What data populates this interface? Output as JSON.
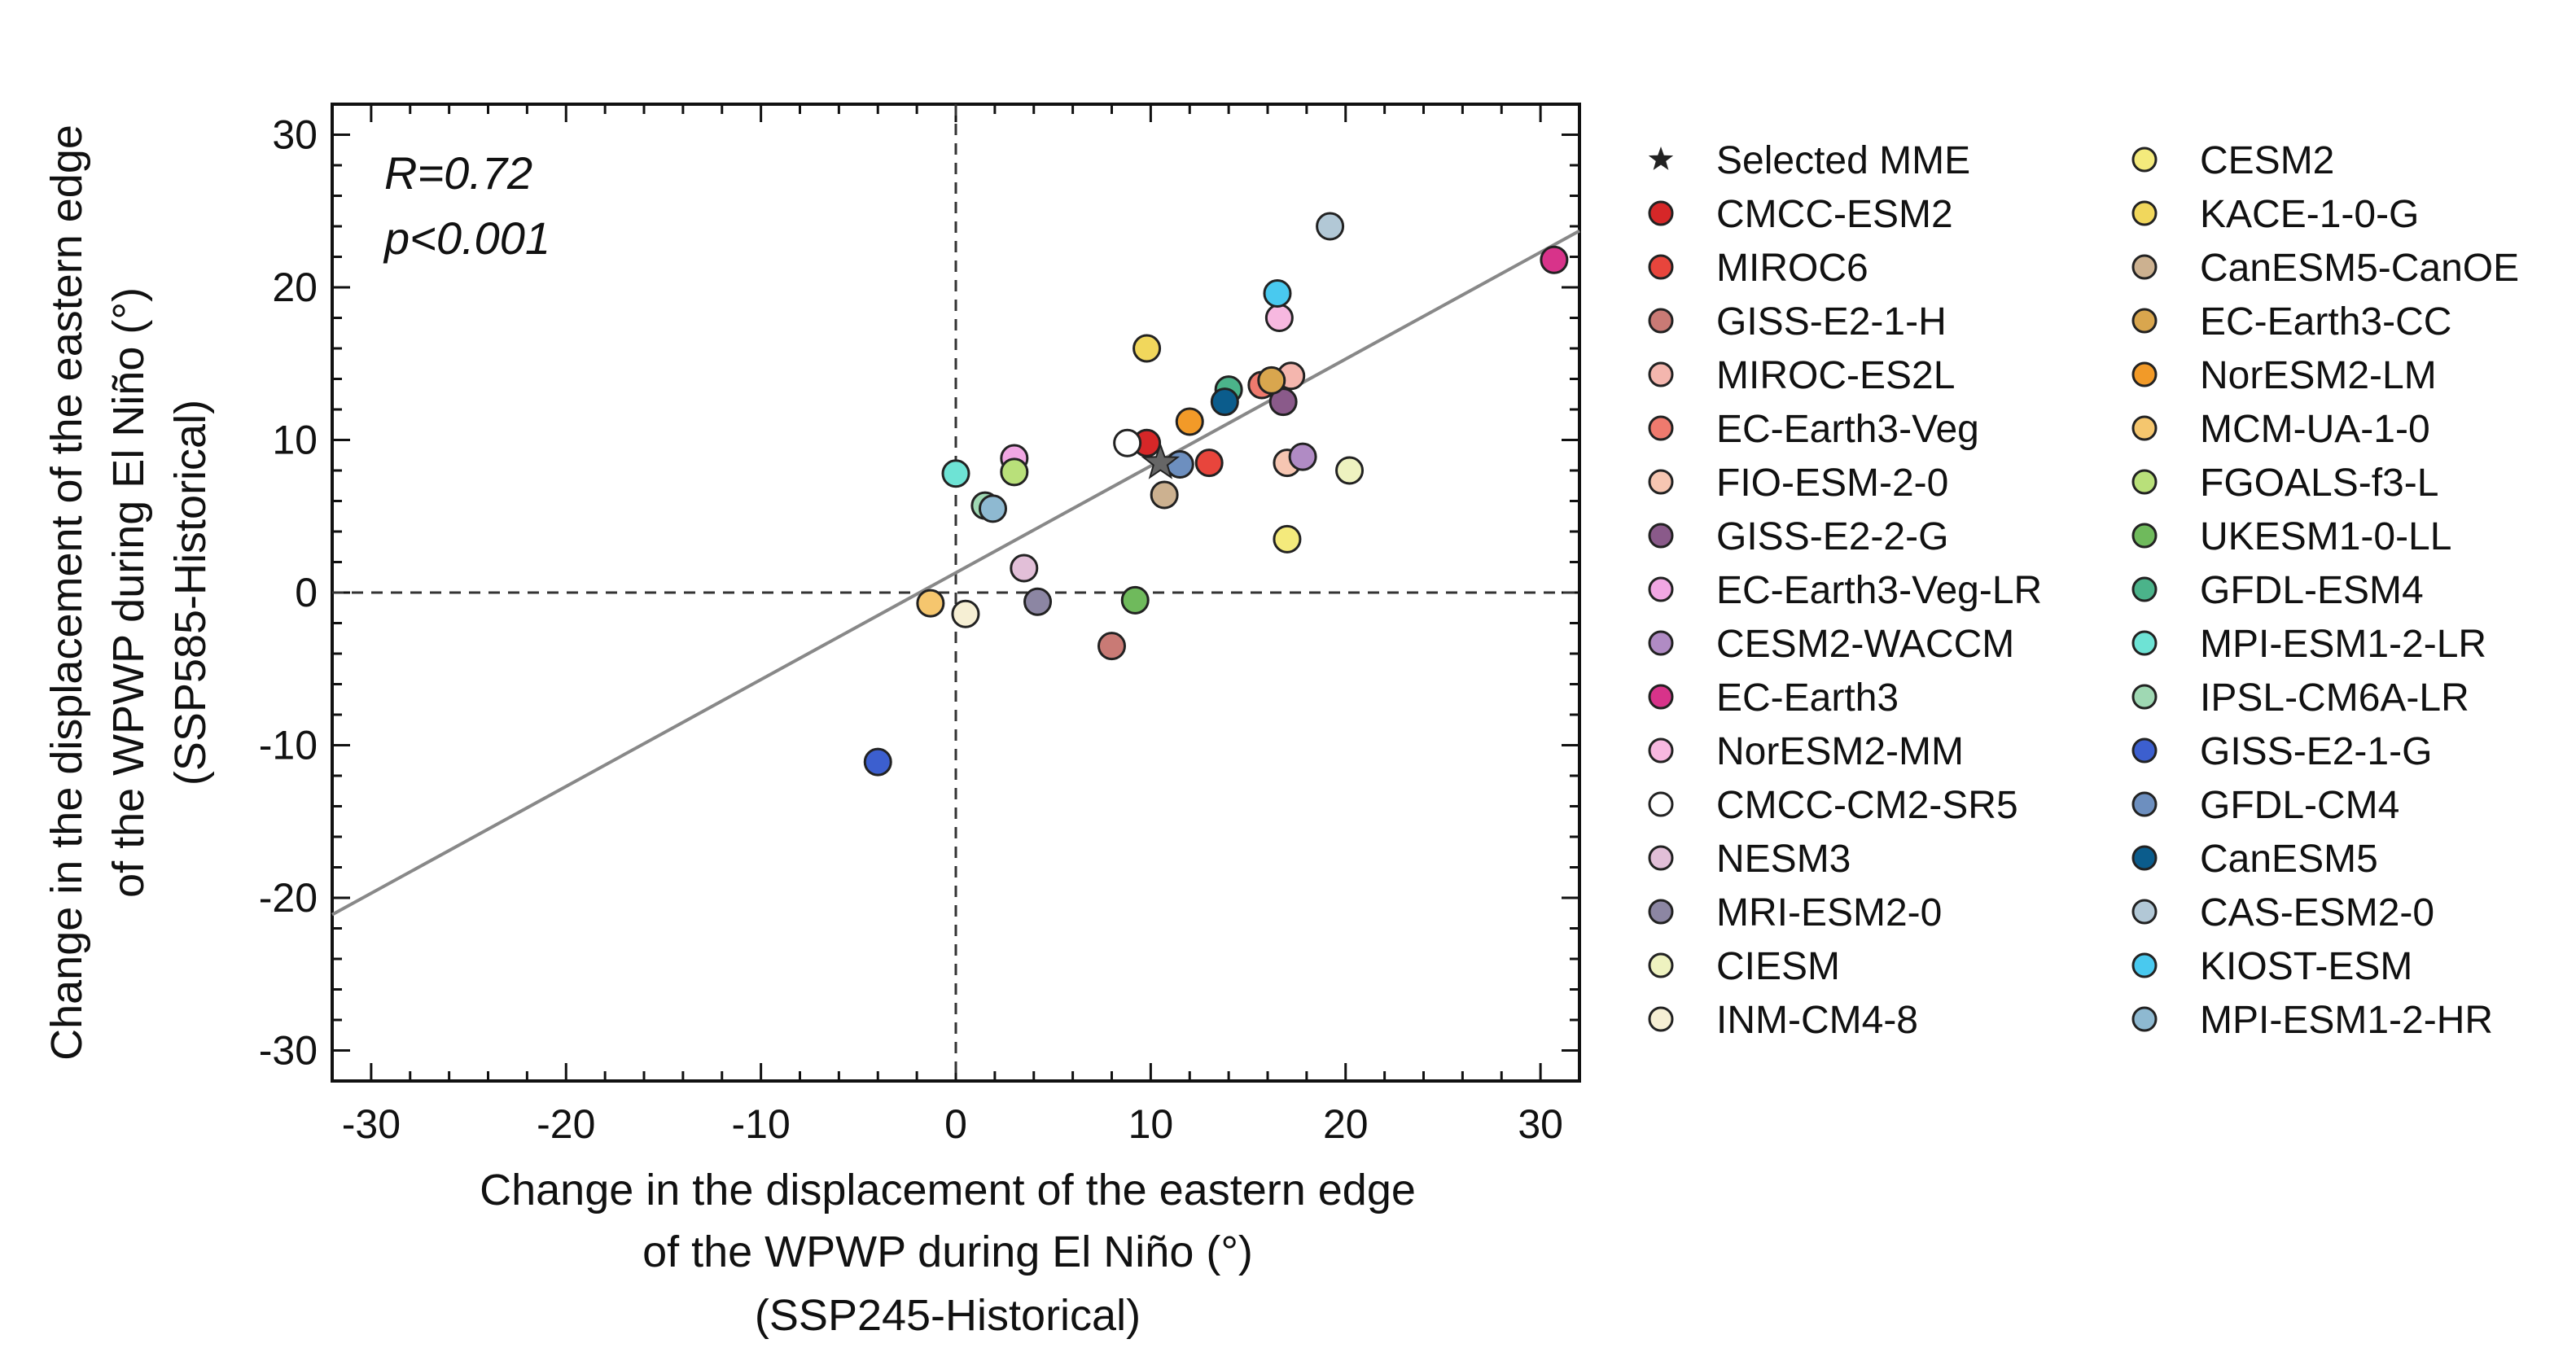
{
  "chart_data": {
    "type": "scatter",
    "xlabel_lines": [
      "Change in the displacement of the eastern edge",
      "of the WPWP during El Niño (°)",
      "(SSP245-Historical)"
    ],
    "ylabel_lines": [
      "Change in the displacement of the eastern edge",
      "of the WPWP during El Niño (°)",
      "(SSP585-Historical)"
    ],
    "xlim": [
      -32,
      32
    ],
    "ylim": [
      -32,
      32
    ],
    "xticks": [
      -30,
      -20,
      -10,
      0,
      10,
      20,
      30
    ],
    "yticks": [
      -30,
      -20,
      -10,
      0,
      10,
      20,
      30
    ],
    "xtick_labels": [
      "-30",
      "-20",
      "-10",
      "0",
      "10",
      "20",
      "30"
    ],
    "ytick_labels": [
      "-30",
      "-20",
      "-10",
      "0",
      "10",
      "20",
      "30"
    ],
    "stats": {
      "r_text": "R=0.72",
      "p_text": "p<0.001"
    },
    "regression_line": {
      "slope": 0.7,
      "intercept": 1.3,
      "color": "#888888"
    },
    "reference_lines": {
      "x": 0,
      "y": 0
    },
    "mme": {
      "name": "Selected MME",
      "x": 10.5,
      "y": 8.5
    },
    "series": [
      {
        "name": "CMCC-ESM2",
        "color": "#d62728",
        "x": 9.8,
        "y": 9.8
      },
      {
        "name": "MIROC6",
        "color": "#e8453c",
        "x": 13.0,
        "y": 8.5
      },
      {
        "name": "GISS-E2-1-H",
        "color": "#c97a75",
        "x": 8.0,
        "y": -3.5
      },
      {
        "name": "MIROC-ES2L",
        "color": "#f4b6ae",
        "x": 17.2,
        "y": 14.2
      },
      {
        "name": "EC-Earth3-Veg",
        "color": "#ef7a6e",
        "x": 15.7,
        "y": 13.6
      },
      {
        "name": "FIO-ESM-2-0",
        "color": "#f6c6b2",
        "x": 17.0,
        "y": 8.5
      },
      {
        "name": "GISS-E2-2-G",
        "color": "#8a5a8a",
        "x": 16.8,
        "y": 12.5
      },
      {
        "name": "EC-Earth3-Veg-LR",
        "color": "#f1a7e3",
        "x": 3.0,
        "y": 8.8
      },
      {
        "name": "CESM2-WACCM",
        "color": "#b08bc4",
        "x": 17.8,
        "y": 8.9
      },
      {
        "name": "EC-Earth3",
        "color": "#d8338a",
        "x": 30.7,
        "y": 21.8
      },
      {
        "name": "NorESM2-MM",
        "color": "#f7b8e0",
        "x": 16.6,
        "y": 18.0
      },
      {
        "name": "CMCC-CM2-SR5",
        "color": "#ffffff",
        "x": 8.8,
        "y": 9.8
      },
      {
        "name": "NESM3",
        "color": "#e2bfd8",
        "x": 3.5,
        "y": 1.6
      },
      {
        "name": "MRI-ESM2-0",
        "color": "#8c86a3",
        "x": 4.2,
        "y": -0.6
      },
      {
        "name": "CIESM",
        "color": "#eef2c0",
        "x": 20.2,
        "y": 8.0
      },
      {
        "name": "INM-CM4-8",
        "color": "#f6efd4",
        "x": 0.5,
        "y": -1.4
      },
      {
        "name": "CESM2",
        "color": "#f4ea7c",
        "x": 17.0,
        "y": 3.5
      },
      {
        "name": "KACE-1-0-G",
        "color": "#f1d75c",
        "x": 9.8,
        "y": 16.0
      },
      {
        "name": "CanESM5-CanOE",
        "color": "#ccb190",
        "x": 10.7,
        "y": 6.4
      },
      {
        "name": "EC-Earth3-CC",
        "color": "#d9a64e",
        "x": 16.2,
        "y": 13.9
      },
      {
        "name": "NorESM2-LM",
        "color": "#f29a28",
        "x": 12.0,
        "y": 11.2
      },
      {
        "name": "MCM-UA-1-0",
        "color": "#f5c66e",
        "x": -1.3,
        "y": -0.7
      },
      {
        "name": "FGOALS-f3-L",
        "color": "#b9e07a",
        "x": 3.0,
        "y": 7.9
      },
      {
        "name": "UKESM1-0-LL",
        "color": "#6fba5c",
        "x": 9.2,
        "y": -0.5
      },
      {
        "name": "GFDL-ESM4",
        "color": "#4bb38a",
        "x": 14.0,
        "y": 13.3
      },
      {
        "name": "MPI-ESM1-2-LR",
        "color": "#6ee3d5",
        "x": 0.0,
        "y": 7.8
      },
      {
        "name": "IPSL-CM6A-LR",
        "color": "#9fd8b3",
        "x": 1.5,
        "y": 5.7
      },
      {
        "name": "GISS-E2-1-G",
        "color": "#3c5fcf",
        "x": -4.0,
        "y": -11.1
      },
      {
        "name": "GFDL-CM4",
        "color": "#6d8fbf",
        "x": 11.5,
        "y": 8.4
      },
      {
        "name": "CanESM5",
        "color": "#0b5c8c",
        "x": 13.8,
        "y": 12.5
      },
      {
        "name": "CAS-ESM2-0",
        "color": "#b2c8d6",
        "x": 19.2,
        "y": 24.0
      },
      {
        "name": "KIOST-ESM",
        "color": "#49c9ef",
        "x": 16.5,
        "y": 19.6
      },
      {
        "name": "MPI-ESM1-2-HR",
        "color": "#8eb9d1",
        "x": 1.9,
        "y": 5.5
      }
    ]
  }
}
